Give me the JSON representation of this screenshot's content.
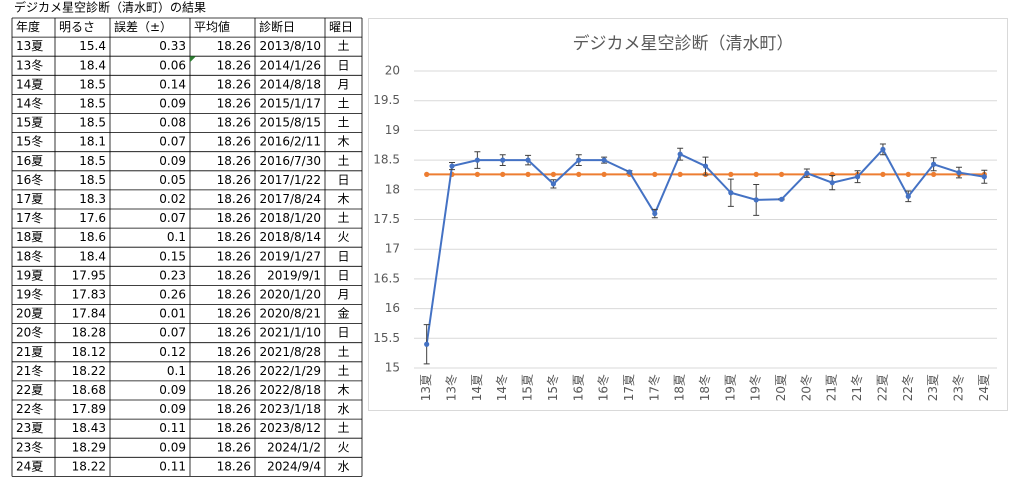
{
  "table": {
    "caption": "デジカメ星空診断（清水町）の結果",
    "header": [
      "年度",
      "明るさ",
      "誤差（±）",
      "平均値",
      "診断日",
      "曜日"
    ],
    "rows": [
      [
        "13夏",
        15.4,
        0.33,
        18.26,
        "2013/8/10",
        "土"
      ],
      [
        "13冬",
        18.4,
        0.06,
        18.26,
        "2014/1/26",
        "日"
      ],
      [
        "14夏",
        18.5,
        0.14,
        18.26,
        "2014/8/18",
        "月"
      ],
      [
        "14冬",
        18.5,
        0.09,
        18.26,
        "2015/1/17",
        "土"
      ],
      [
        "15夏",
        18.5,
        0.08,
        18.26,
        "2015/8/15",
        "土"
      ],
      [
        "15冬",
        18.1,
        0.07,
        18.26,
        "2016/2/11",
        "木"
      ],
      [
        "16夏",
        18.5,
        0.09,
        18.26,
        "2016/7/30",
        "土"
      ],
      [
        "16冬",
        18.5,
        0.05,
        18.26,
        "2017/1/22",
        "日"
      ],
      [
        "17夏",
        18.3,
        0.02,
        18.26,
        "2017/8/24",
        "木"
      ],
      [
        "17冬",
        17.6,
        0.07,
        18.26,
        "2018/1/20",
        "土"
      ],
      [
        "18夏",
        18.6,
        0.1,
        18.26,
        "2018/8/14",
        "火"
      ],
      [
        "18冬",
        18.4,
        0.15,
        18.26,
        "2019/1/27",
        "日"
      ],
      [
        "19夏",
        17.95,
        0.23,
        18.26,
        "2019/9/1",
        "日"
      ],
      [
        "19冬",
        17.83,
        0.26,
        18.26,
        "2020/1/20",
        "月"
      ],
      [
        "20夏",
        17.84,
        0.01,
        18.26,
        "2020/8/21",
        "金"
      ],
      [
        "20冬",
        18.28,
        0.07,
        18.26,
        "2021/1/10",
        "日"
      ],
      [
        "21夏",
        18.12,
        0.12,
        18.26,
        "2021/8/28",
        "土"
      ],
      [
        "21冬",
        18.22,
        0.1,
        18.26,
        "2022/1/29",
        "土"
      ],
      [
        "22夏",
        18.68,
        0.09,
        18.26,
        "2022/8/18",
        "木"
      ],
      [
        "22冬",
        17.89,
        0.09,
        18.26,
        "2023/1/18",
        "水"
      ],
      [
        "23夏",
        18.43,
        0.11,
        18.26,
        "2023/8/12",
        "土"
      ],
      [
        "23冬",
        18.29,
        0.09,
        18.26,
        "2024/1/2",
        "火"
      ],
      [
        "24夏",
        18.22,
        0.11,
        18.26,
        "2024/9/4",
        "水"
      ]
    ]
  },
  "chart_data": {
    "type": "line",
    "title": "デジカメ星空診断（清水町）",
    "categories": [
      "13夏",
      "13冬",
      "14夏",
      "14冬",
      "15夏",
      "15冬",
      "16夏",
      "16冬",
      "17夏",
      "17冬",
      "18夏",
      "18冬",
      "19夏",
      "19冬",
      "20夏",
      "20冬",
      "21夏",
      "21冬",
      "22夏",
      "22冬",
      "23夏",
      "23冬",
      "24夏"
    ],
    "series": [
      {
        "color": "#4472c4",
        "values": [
          15.4,
          18.4,
          18.5,
          18.5,
          18.5,
          18.1,
          18.5,
          18.5,
          18.3,
          17.6,
          18.6,
          18.4,
          17.95,
          17.83,
          17.84,
          18.28,
          18.12,
          18.22,
          18.68,
          17.89,
          18.43,
          18.29,
          18.22
        ],
        "errors": [
          0.33,
          0.06,
          0.14,
          0.09,
          0.08,
          0.07,
          0.09,
          0.05,
          0.02,
          0.07,
          0.1,
          0.15,
          0.23,
          0.26,
          0.01,
          0.07,
          0.12,
          0.1,
          0.09,
          0.09,
          0.11,
          0.09,
          0.11
        ]
      },
      {
        "color": "#ed7d31",
        "values": [
          18.26,
          18.26,
          18.26,
          18.26,
          18.26,
          18.26,
          18.26,
          18.26,
          18.26,
          18.26,
          18.26,
          18.26,
          18.26,
          18.26,
          18.26,
          18.26,
          18.26,
          18.26,
          18.26,
          18.26,
          18.26,
          18.26,
          18.26
        ]
      }
    ],
    "ylim": [
      15,
      20
    ],
    "yticks": [
      15,
      15.5,
      16,
      16.5,
      17,
      17.5,
      18,
      18.5,
      19,
      19.5,
      20
    ],
    "grid": true
  }
}
